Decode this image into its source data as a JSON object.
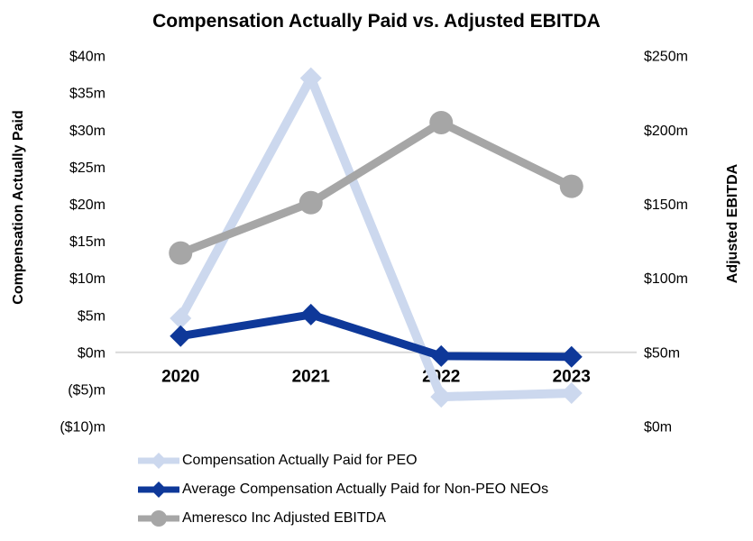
{
  "title": "Compensation Actually Paid vs. Adjusted EBITDA",
  "chart_data": {
    "type": "line",
    "categories": [
      "2020",
      "2021",
      "2022",
      "2023"
    ],
    "series": [
      {
        "name": "Compensation Actually Paid for PEO",
        "axis": "left",
        "color": "#ccd8ee",
        "marker": "diamond",
        "values": [
          4.6,
          37,
          -6,
          -5.5
        ]
      },
      {
        "name": "Average Compensation Actually Paid for Non-PEO NEOs",
        "axis": "left",
        "color": "#0e3899",
        "marker": "diamond",
        "values": [
          2.2,
          5.1,
          -0.5,
          -0.6
        ]
      },
      {
        "name": "Ameresco Inc Adjusted EBITDA",
        "axis": "right",
        "color": "#a6a6a6",
        "marker": "circle",
        "values": [
          117,
          151,
          205,
          162
        ]
      }
    ],
    "left_axis": {
      "title": "Compensation Actually Paid",
      "range": [
        -10,
        40
      ],
      "ticks": [
        {
          "label": "$40m",
          "value": 40
        },
        {
          "label": "$35m",
          "value": 35
        },
        {
          "label": "$30m",
          "value": 30
        },
        {
          "label": "$25m",
          "value": 25
        },
        {
          "label": "$20m",
          "value": 20
        },
        {
          "label": "$15m",
          "value": 15
        },
        {
          "label": "$10m",
          "value": 10
        },
        {
          "label": "$5m",
          "value": 5
        },
        {
          "label": "$0m",
          "value": 0
        },
        {
          "label": "($5)m",
          "value": -5
        },
        {
          "label": "($10)m",
          "value": -10
        }
      ]
    },
    "right_axis": {
      "title": "Adjusted EBITDA",
      "range": [
        0,
        250
      ],
      "ticks": [
        {
          "label": "$250m",
          "value": 250
        },
        {
          "label": "$200m",
          "value": 200
        },
        {
          "label": "$150m",
          "value": 150
        },
        {
          "label": "$100m",
          "value": 100
        },
        {
          "label": "$50m",
          "value": 50
        },
        {
          "label": "$0m",
          "value": 0
        }
      ]
    },
    "gridline": {
      "axis": "left",
      "value": 0,
      "color": "#d9d9d9"
    },
    "legend_position": "bottom-left",
    "background": "#ffffff",
    "text_color": "#000000"
  }
}
